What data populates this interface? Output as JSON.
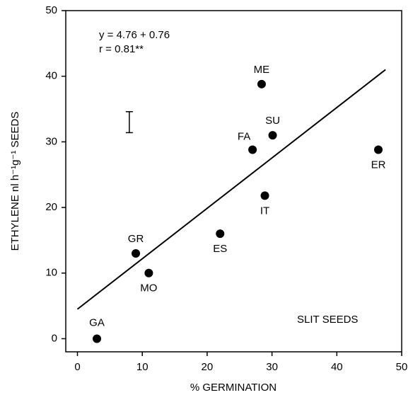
{
  "chart_data": {
    "type": "scatter",
    "x_label": "% GERMINATION",
    "y_label": "ETHYLENE nl h⁻¹g⁻¹ SEEDS",
    "annotations": [
      "y = 4.76 + 0.76",
      "r = 0.81**",
      "SLIT SEEDS"
    ],
    "series": [
      {
        "color": "#000000",
        "labels": [
          "GA",
          "GR",
          "MO",
          "ES",
          "FA",
          "ME",
          "IT",
          "SU",
          "ER"
        ],
        "x": [
          3,
          9,
          11,
          22,
          27,
          28.4,
          28.9,
          30.1,
          46.4
        ],
        "values": [
          0,
          13,
          10,
          16,
          28.8,
          38.8,
          21.8,
          31,
          28.8
        ]
      }
    ],
    "fit_line": {
      "x": [
        0,
        47.5
      ],
      "values": [
        4.5,
        41
      ]
    },
    "error_bar": {
      "x": 8,
      "value": 33,
      "error": 1.6
    },
    "xlim": [
      -1.8,
      50
    ],
    "ylim": [
      -2,
      50
    ],
    "xticks": [
      0,
      10,
      20,
      30,
      40,
      50
    ],
    "yticks": [
      0,
      10,
      20,
      30,
      40,
      50
    ]
  }
}
